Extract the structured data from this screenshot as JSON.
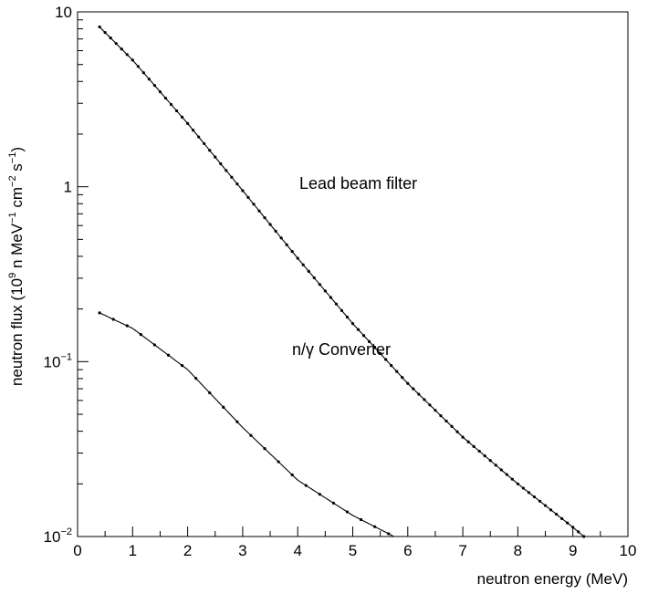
{
  "chart_data": {
    "type": "line",
    "title": "",
    "xlabel": "neutron energy (MeV)",
    "ylabel_parts": [
      "neutron flux (10",
      "9",
      " n MeV",
      "−1",
      " cm",
      "−2",
      " s",
      "−1",
      ")"
    ],
    "ylabel": "neutron flux (10^9 n MeV^-1 cm^-2 s^-1)",
    "xlim": [
      0,
      10
    ],
    "ylim": [
      0.01,
      10
    ],
    "yscale": "log",
    "grid": false,
    "x_ticks": [
      "0",
      "1",
      "2",
      "3",
      "4",
      "5",
      "6",
      "7",
      "8",
      "9",
      "10"
    ],
    "y_ticks": [
      {
        "value": 10,
        "label": "10"
      },
      {
        "value": 1,
        "label": "1"
      },
      {
        "value": 0.1,
        "label": "10",
        "exp": "−1"
      },
      {
        "value": 0.01,
        "label": "10",
        "exp": "−2"
      }
    ],
    "series": [
      {
        "name": "Lead beam filter",
        "x": [
          0.4,
          1.0,
          2.0,
          3.0,
          4.0,
          5.0,
          6.0,
          7.0,
          8.0,
          9.0,
          9.2
        ],
        "y": [
          8.2,
          5.3,
          2.3,
          0.95,
          0.39,
          0.165,
          0.075,
          0.037,
          0.02,
          0.0113,
          0.01
        ]
      },
      {
        "name": "n/γ Converter",
        "x": [
          0.4,
          1.0,
          2.0,
          3.0,
          4.0,
          5.0,
          5.75
        ],
        "y": [
          0.19,
          0.155,
          0.09,
          0.042,
          0.021,
          0.0132,
          0.01
        ]
      }
    ],
    "annotations": [
      "Lead beam filter",
      "n/γ Converter"
    ]
  }
}
